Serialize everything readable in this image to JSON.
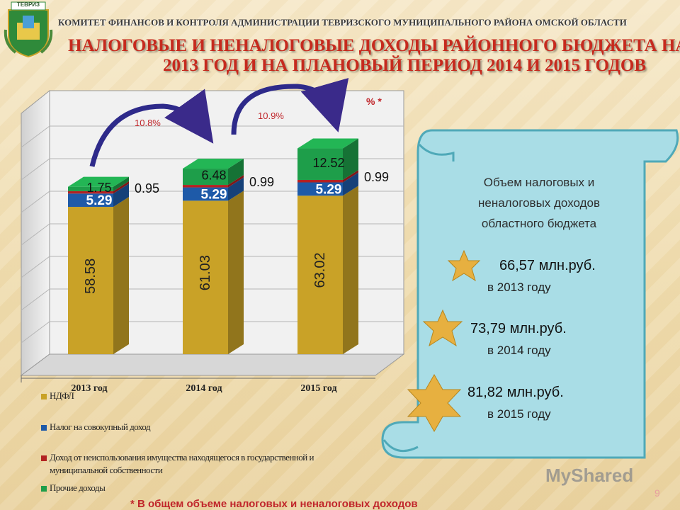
{
  "header": {
    "org": "КОМИТЕТ ФИНАНСОВ И КОНТРОЛЯ АДМИНИСТРАЦИИ ТЕВРИЗСКОГО МУНИЦИПАЛЬНОГО РАЙОНА ОМСКОЙ ОБЛАСТИ",
    "title_line1": "НАЛОГОВЫЕ И НЕНАЛОГОВЫЕ ДОХОДЫ РАЙОННОГО БЮДЖЕТА НА",
    "title_line2": "2013 ГОД И НА ПЛАНОВЫЙ ПЕРИОД 2014 И 2015 ГОДОВ",
    "emblem_text": "ТЕВРИЗ"
  },
  "chart_data": {
    "type": "bar",
    "stacked": true,
    "categories": [
      "2013 год",
      "2014 год",
      "2015 год"
    ],
    "series": [
      {
        "name": "НДФЛ",
        "values": [
          58.58,
          61.03,
          63.02
        ],
        "color": "#c9a227"
      },
      {
        "name": "Налог на совокупный доход",
        "values": [
          5.29,
          5.29,
          5.29
        ],
        "color": "#1e5aa8"
      },
      {
        "name": "Доход от неиспользования имущества находящегося в государственной и муниципальной собственности",
        "values": [
          0.95,
          0.99,
          0.99
        ],
        "color": "#b22222"
      },
      {
        "name": "Прочие доходы",
        "values": [
          1.75,
          6.48,
          12.52
        ],
        "color": "#1e9e4a"
      }
    ],
    "growth_labels": [
      "10.8%",
      "10.9%"
    ],
    "percent_marker": "% *",
    "legend_position": "bottom"
  },
  "legend": {
    "items": [
      {
        "line1": "НДФЛ",
        "line2": ""
      },
      {
        "line1": "Налог на совокупный доход",
        "line2": ""
      },
      {
        "line1": "Доход от неиспользования имущества находящегося в государственной и",
        "line2": "муниципальной собственности"
      },
      {
        "line1": "Прочие доходы",
        "line2": ""
      }
    ]
  },
  "panel": {
    "heading_line1": "Объем налоговых и",
    "heading_line2": "неналоговых доходов",
    "heading_line3": "областного бюджета",
    "entries": [
      {
        "value": "66,57 млн.руб.",
        "year": "в 2013 году"
      },
      {
        "value": "73,79 млн.руб.",
        "year": "в 2014 году"
      },
      {
        "value": "81,82 млн.руб.",
        "year": "в 2015 году"
      }
    ]
  },
  "footnote": "* В общем объеме налоговых и неналоговых доходов",
  "page_number": "9",
  "watermark": "MyShared",
  "colors": {
    "title": "#c62a1e",
    "scroll": "#a9dde6",
    "star": "#e7b040"
  }
}
